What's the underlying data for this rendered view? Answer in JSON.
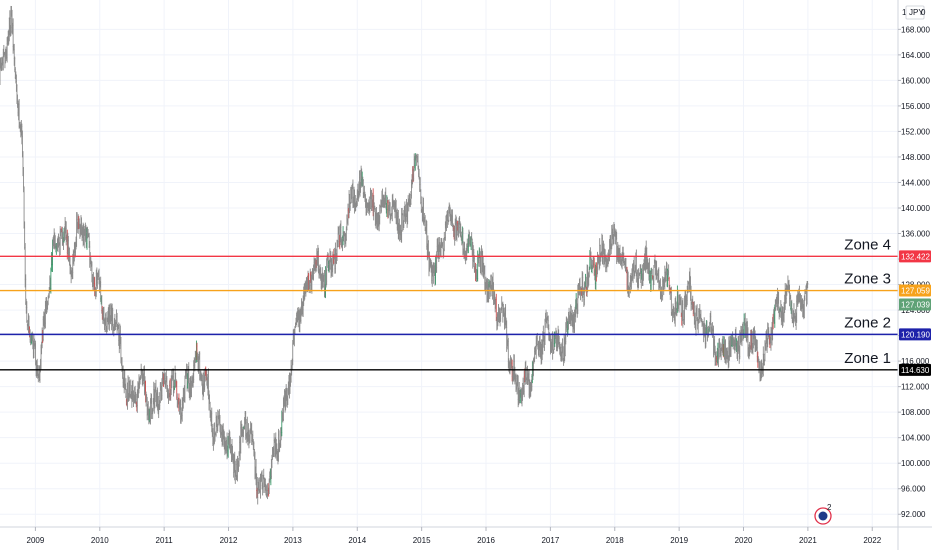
{
  "header": {
    "currency": "JPY",
    "scale_prefix": "1",
    "scale_value": "0"
  },
  "colors": {
    "grid": "#f0f3fa",
    "bar": "#8a8a8a",
    "zone4": "#f23645",
    "zone3": "#f7a21b",
    "zone2": "#1e22aa",
    "zone1": "#000000",
    "last_price": "#5fa276",
    "text": "#131722"
  },
  "chart_data": {
    "type": "bar",
    "instrument_unit": "JPY",
    "x_range": [
      2008.45,
      2022.4
    ],
    "ylim": [
      90.0,
      172.6
    ],
    "x_ticks": [
      "2009",
      "2010",
      "2011",
      "2012",
      "2013",
      "2014",
      "2015",
      "2016",
      "2017",
      "2018",
      "2019",
      "2020",
      "2021",
      "2022"
    ],
    "y_ticks": [
      "92.000",
      "96.000",
      "100.000",
      "104.000",
      "108.000",
      "112.000",
      "116.000",
      "120.000",
      "124.000",
      "128.000",
      "132.000",
      "136.000",
      "140.000",
      "144.000",
      "148.000",
      "152.000",
      "156.000",
      "160.000",
      "164.000",
      "168.000"
    ],
    "price_path": [
      [
        2008.45,
        160
      ],
      [
        2008.55,
        166
      ],
      [
        2008.62,
        168.8
      ],
      [
        2008.72,
        158
      ],
      [
        2008.8,
        148
      ],
      [
        2008.85,
        126
      ],
      [
        2008.95,
        118
      ],
      [
        2009.05,
        115
      ],
      [
        2009.15,
        122
      ],
      [
        2009.25,
        132
      ],
      [
        2009.4,
        137
      ],
      [
        2009.55,
        131
      ],
      [
        2009.7,
        138
      ],
      [
        2009.85,
        132
      ],
      [
        2009.95,
        128
      ],
      [
        2010.05,
        124
      ],
      [
        2010.15,
        121
      ],
      [
        2010.25,
        124
      ],
      [
        2010.35,
        114
      ],
      [
        2010.5,
        110
      ],
      [
        2010.65,
        113
      ],
      [
        2010.8,
        108
      ],
      [
        2010.95,
        112
      ],
      [
        2011.1,
        113
      ],
      [
        2011.25,
        109
      ],
      [
        2011.35,
        112
      ],
      [
        2011.5,
        116
      ],
      [
        2011.65,
        113
      ],
      [
        2011.75,
        106
      ],
      [
        2011.9,
        105
      ],
      [
        2012.05,
        101
      ],
      [
        2012.15,
        99
      ],
      [
        2012.25,
        108
      ],
      [
        2012.35,
        103
      ],
      [
        2012.45,
        97
      ],
      [
        2012.55,
        95
      ],
      [
        2012.65,
        99
      ],
      [
        2012.75,
        103
      ],
      [
        2012.9,
        110
      ],
      [
        2013.05,
        122
      ],
      [
        2013.2,
        127
      ],
      [
        2013.35,
        131
      ],
      [
        2013.5,
        129
      ],
      [
        2013.65,
        133
      ],
      [
        2013.8,
        136
      ],
      [
        2013.92,
        142
      ],
      [
        2014.05,
        143
      ],
      [
        2014.15,
        141
      ],
      [
        2014.3,
        139
      ],
      [
        2014.45,
        141
      ],
      [
        2014.6,
        139
      ],
      [
        2014.75,
        137
      ],
      [
        2014.82,
        143
      ],
      [
        2014.92,
        148
      ],
      [
        2015.0,
        142
      ],
      [
        2015.1,
        132
      ],
      [
        2015.2,
        130
      ],
      [
        2015.3,
        134
      ],
      [
        2015.45,
        139
      ],
      [
        2015.6,
        136
      ],
      [
        2015.75,
        133
      ],
      [
        2015.9,
        131
      ],
      [
        2016.0,
        129
      ],
      [
        2016.1,
        126
      ],
      [
        2016.2,
        124
      ],
      [
        2016.3,
        122
      ],
      [
        2016.4,
        114
      ],
      [
        2016.55,
        111
      ],
      [
        2016.7,
        114
      ],
      [
        2016.82,
        118
      ],
      [
        2016.95,
        121
      ],
      [
        2017.05,
        120
      ],
      [
        2017.15,
        117
      ],
      [
        2017.3,
        122
      ],
      [
        2017.45,
        126
      ],
      [
        2017.55,
        129
      ],
      [
        2017.7,
        131
      ],
      [
        2017.85,
        133
      ],
      [
        2018.0,
        135
      ],
      [
        2018.1,
        132
      ],
      [
        2018.2,
        129
      ],
      [
        2018.35,
        130
      ],
      [
        2018.5,
        131
      ],
      [
        2018.65,
        129
      ],
      [
        2018.8,
        128
      ],
      [
        2018.95,
        124
      ],
      [
        2019.05,
        125
      ],
      [
        2019.15,
        127
      ],
      [
        2019.3,
        122
      ],
      [
        2019.45,
        121
      ],
      [
        2019.6,
        117
      ],
      [
        2019.75,
        118
      ],
      [
        2019.9,
        119
      ],
      [
        2020.05,
        121
      ],
      [
        2020.2,
        117
      ],
      [
        2020.3,
        115
      ],
      [
        2020.4,
        121
      ],
      [
        2020.55,
        125
      ],
      [
        2020.7,
        126
      ],
      [
        2020.8,
        123
      ],
      [
        2020.9,
        125
      ],
      [
        2021.0,
        127.1
      ]
    ],
    "horizontal_lines": [
      {
        "label": "Zone 4",
        "value": 132.422,
        "value_text": "132.422",
        "color": "#f23645"
      },
      {
        "label": "Zone 3",
        "value": 127.059,
        "value_text": "127.059",
        "color": "#f7a21b"
      },
      {
        "label": "Zone 2",
        "value": 120.19,
        "value_text": "120.190",
        "color": "#1e22aa"
      },
      {
        "label": "Zone 1",
        "value": 114.63,
        "value_text": "114.630",
        "color": "#000000"
      }
    ],
    "last_price": {
      "value": 127.039,
      "value_text": "127.039"
    },
    "grid": true,
    "legend": "none"
  }
}
